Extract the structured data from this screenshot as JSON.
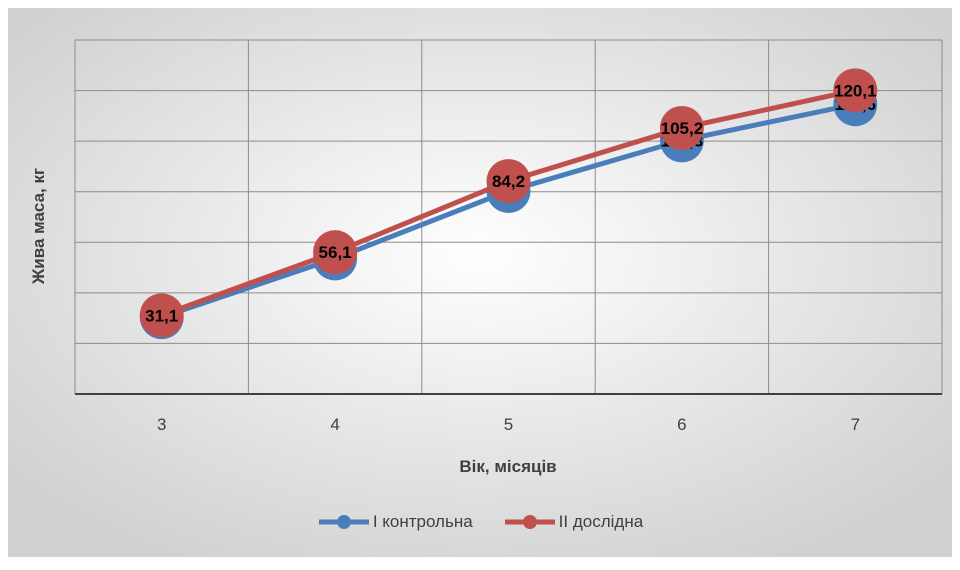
{
  "chart_data": {
    "type": "line",
    "xlabel": "Вік, місяців",
    "ylabel": "Жива маса, кг",
    "categories": [
      "3",
      "4",
      "5",
      "6",
      "7"
    ],
    "ylim": [
      0,
      140
    ],
    "grid": true,
    "legend_position": "bottom",
    "series": [
      {
        "name": "I контрольна",
        "values": [
          30.4,
          53.6,
          80.3,
          100.3,
          114.6
        ],
        "labels": [
          "30,4",
          "53,6",
          "80,3",
          "100,3",
          "114,6"
        ],
        "color": "#4a7ebb"
      },
      {
        "name": "II дослідна",
        "values": [
          31.1,
          56.1,
          84.2,
          105.2,
          120.1
        ],
        "labels": [
          "31,1",
          "56,1",
          "84,2",
          "105,2",
          "120,1"
        ],
        "color": "#c0504d"
      }
    ]
  }
}
